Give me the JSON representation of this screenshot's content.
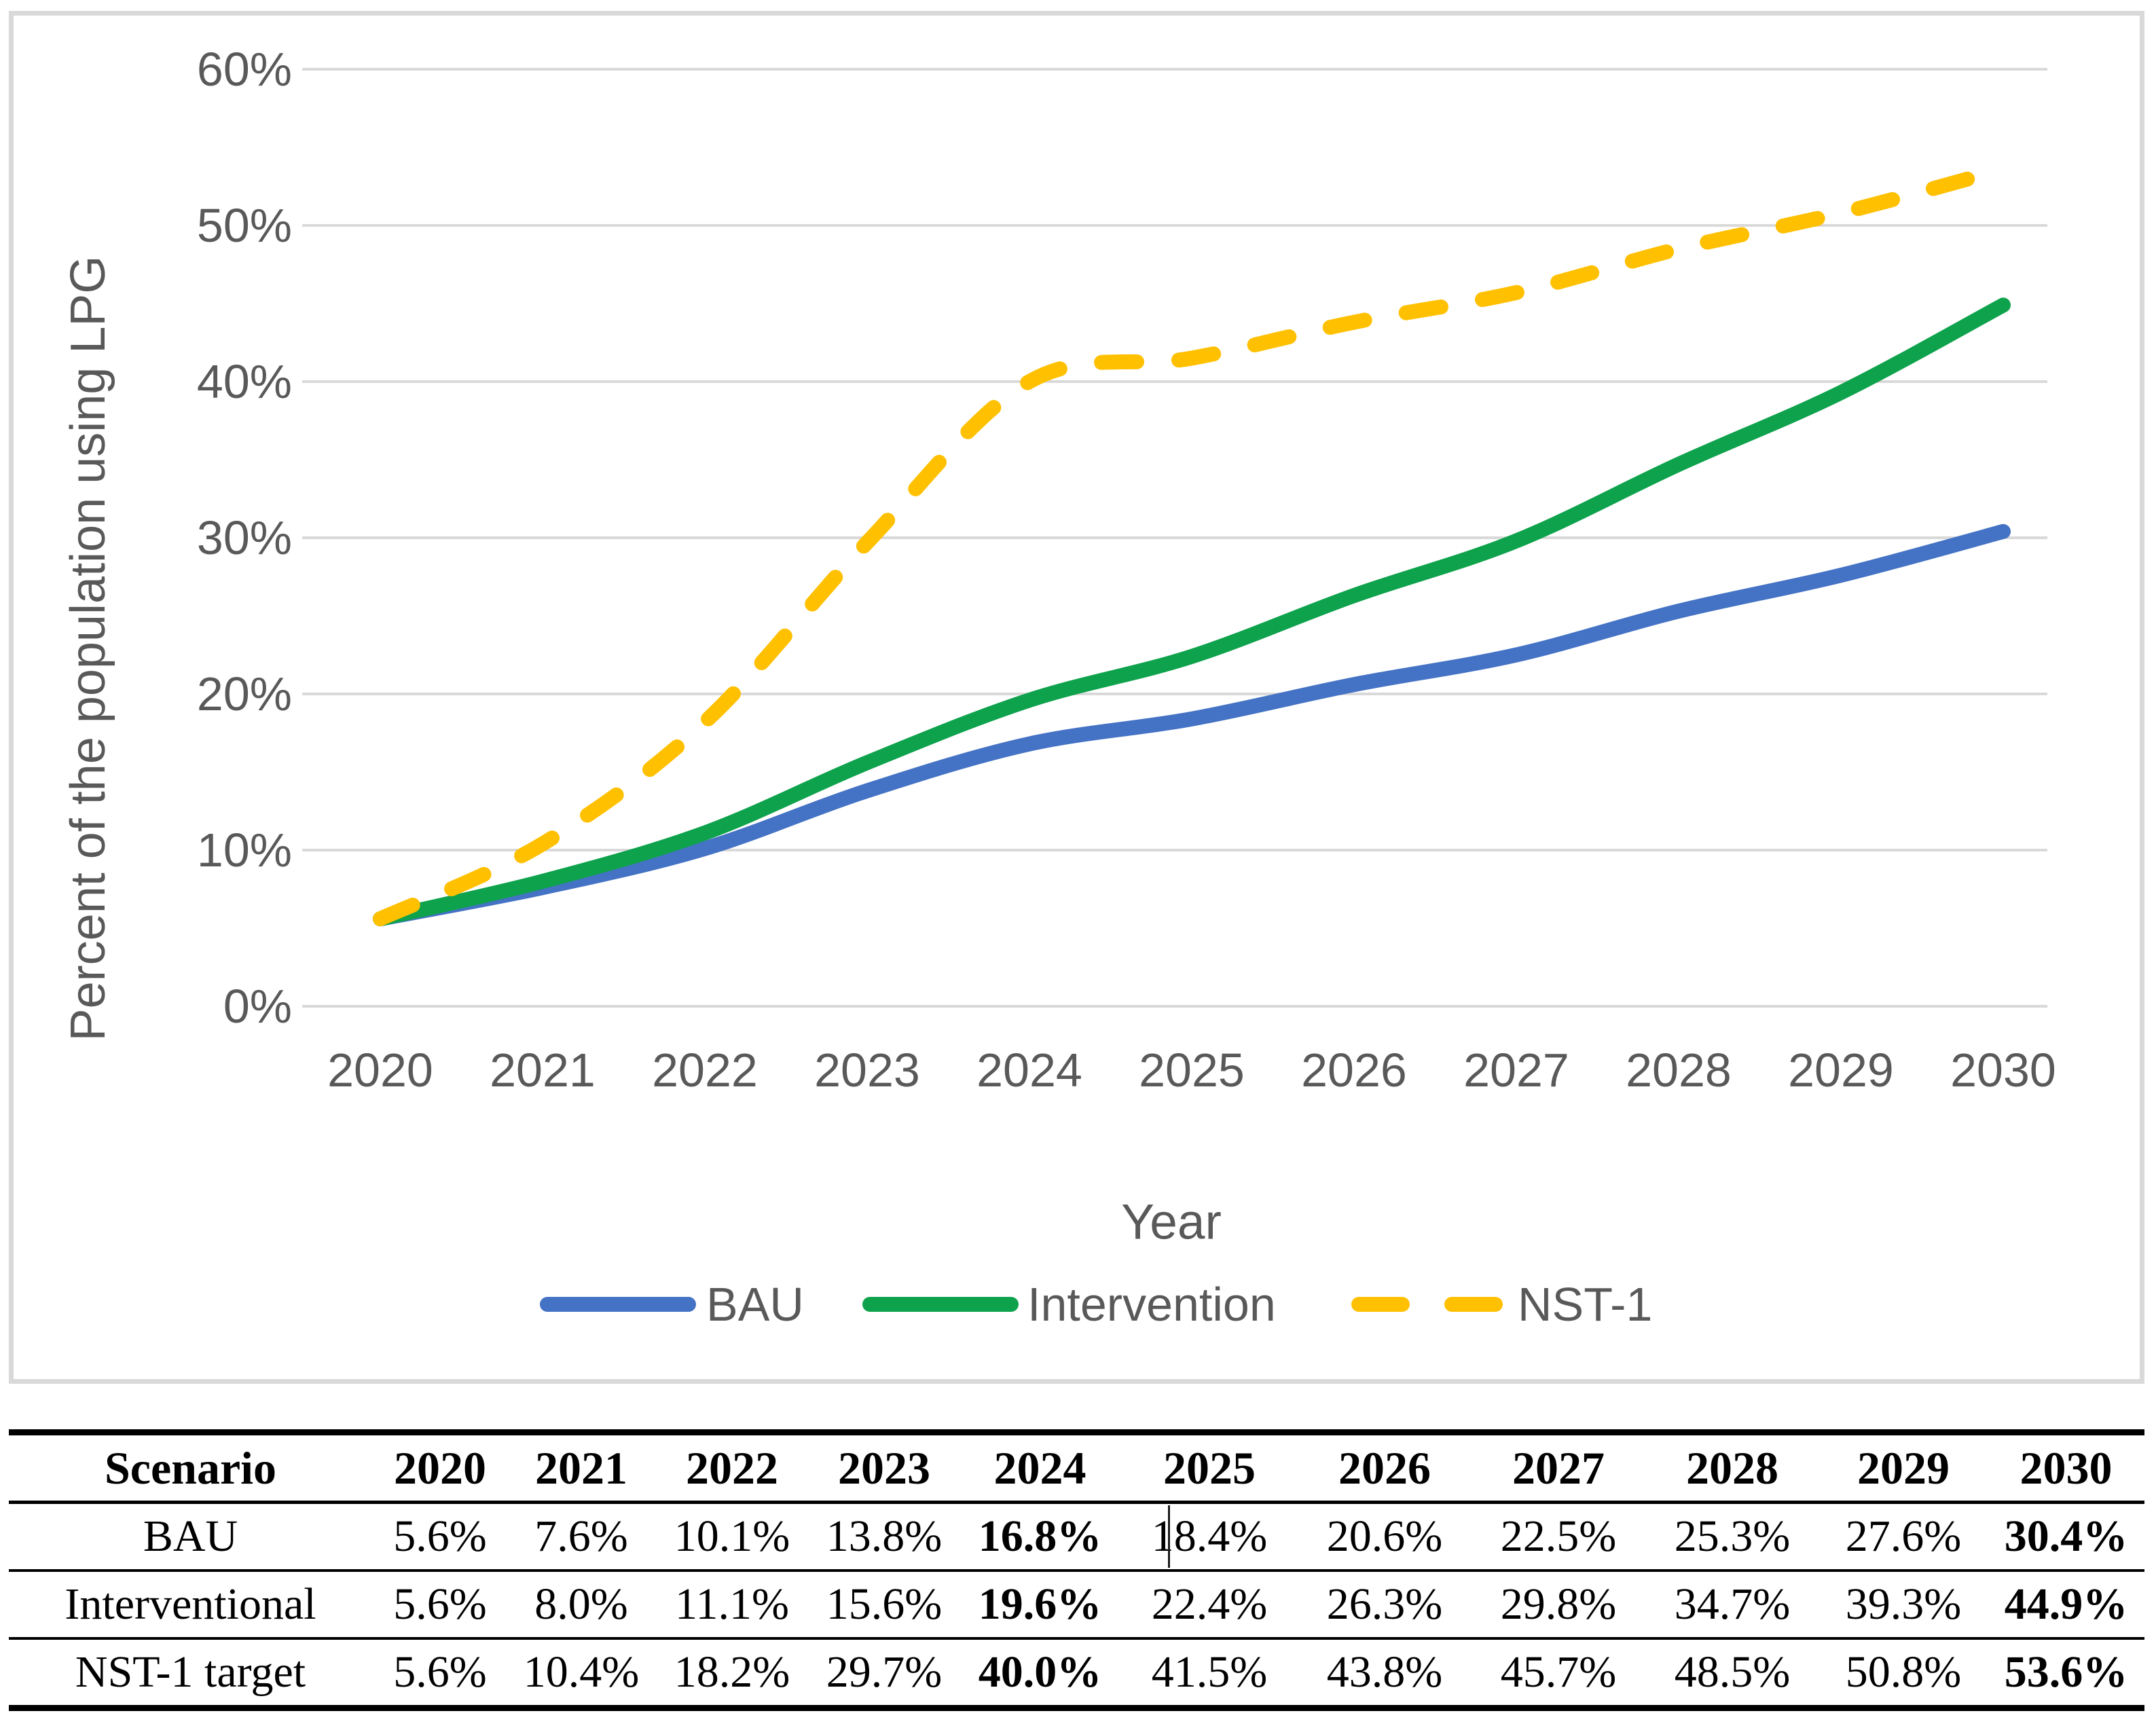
{
  "colors": {
    "accent_blue": "#4472C4",
    "accent_green": "#0DA24B",
    "accent_gold": "#FFC000",
    "axis_text": "#595959",
    "gridline": "#D9D9D9"
  },
  "figure": {
    "y_axis": {
      "title": "Percent of the population using LPG",
      "ticks": [
        "0%",
        "10%",
        "20%",
        "30%",
        "40%",
        "50%",
        "60%"
      ]
    },
    "x_axis": {
      "title": "Year",
      "ticks": [
        "2020",
        "2021",
        "2022",
        "2023",
        "2024",
        "2025",
        "2026",
        "2027",
        "2028",
        "2029",
        "2030"
      ]
    },
    "legend": [
      {
        "label": "BAU",
        "color": "#4472C4",
        "style": "solid"
      },
      {
        "label": "Intervention",
        "color": "#0DA24B",
        "style": "solid"
      },
      {
        "label": "NST-1",
        "color": "#FFC000",
        "style": "dashed"
      }
    ]
  },
  "chart_data": {
    "type": "line",
    "title": "",
    "xlabel": "Year",
    "ylabel": "Percent of the population using LPG",
    "x": [
      2020,
      2021,
      2022,
      2023,
      2024,
      2025,
      2026,
      2027,
      2028,
      2029,
      2030
    ],
    "ylim_percent": [
      0,
      60
    ],
    "y_tick_step_percent": 10,
    "grid": true,
    "legend_position": "bottom",
    "series": [
      {
        "name": "BAU",
        "color": "#4472C4",
        "dashed": false,
        "values_percent": [
          5.6,
          7.6,
          10.1,
          13.8,
          16.8,
          18.4,
          20.6,
          22.5,
          25.3,
          27.6,
          30.4
        ]
      },
      {
        "name": "Intervention",
        "color": "#0DA24B",
        "dashed": false,
        "values_percent": [
          5.6,
          8.0,
          11.1,
          15.6,
          19.6,
          22.4,
          26.3,
          29.8,
          34.7,
          39.3,
          44.9
        ]
      },
      {
        "name": "NST-1",
        "color": "#FFC000",
        "dashed": true,
        "values_percent": [
          5.6,
          10.4,
          18.2,
          29.7,
          40.0,
          41.5,
          43.8,
          45.7,
          48.5,
          50.8,
          53.6
        ]
      }
    ]
  },
  "table": {
    "header": [
      "Scenario",
      "2020",
      "2021",
      "2022",
      "2023",
      "2024",
      "2025",
      "2026",
      "2027",
      "2028",
      "2029",
      "2030"
    ],
    "rows": [
      {
        "label": "BAU",
        "values": [
          "5.6%",
          "7.6%",
          "10.1%",
          "13.8%",
          "16.8%",
          "18.4%",
          "20.6%",
          "22.5%",
          "25.3%",
          "27.6%",
          "30.4%"
        ]
      },
      {
        "label": "Interventional",
        "values": [
          "5.6%",
          "8.0%",
          "11.1%",
          "15.6%",
          "19.6%",
          "22.4%",
          "26.3%",
          "29.8%",
          "34.7%",
          "39.3%",
          "44.9%"
        ]
      },
      {
        "label": "NST-1 target",
        "values": [
          "5.6%",
          "10.4%",
          "18.2%",
          "29.7%",
          "40.0%",
          "41.5%",
          "43.8%",
          "45.7%",
          "48.5%",
          "50.8%",
          "53.6%"
        ]
      }
    ],
    "bold_value_columns": [
      4,
      10
    ]
  }
}
